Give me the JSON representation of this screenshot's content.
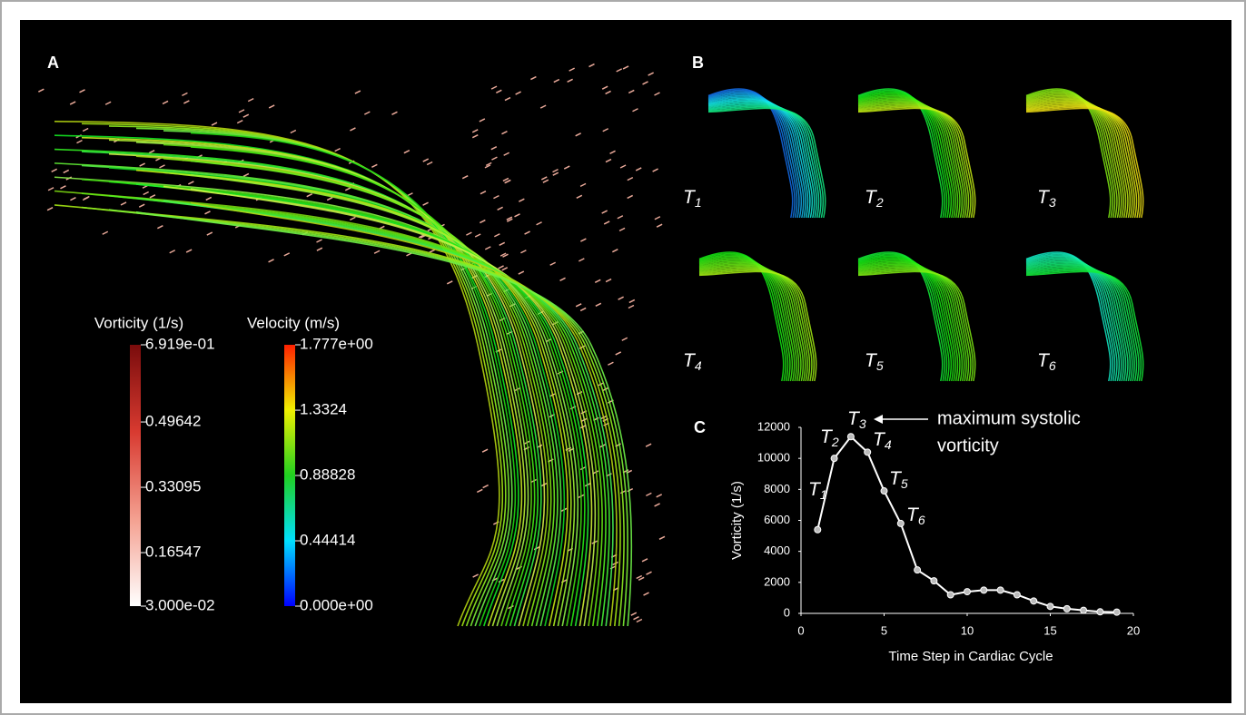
{
  "panels": {
    "a": "A",
    "b": "B",
    "c": "C"
  },
  "colorbars": [
    {
      "title": "Vorticity (1/s)",
      "lim": [
        0.03,
        0.6919
      ],
      "ticks": [
        {
          "value": 0.6919,
          "label": "6.919e-01"
        },
        0.49642,
        0.33095,
        0.16547,
        {
          "value": 0.03,
          "label": "3.000e-02"
        }
      ],
      "colors": [
        "#ffffff",
        "#f4a090",
        "#d83a30",
        "#7a0c0c"
      ]
    },
    {
      "title": "Velocity (m/s)",
      "lim": [
        0,
        1.777
      ],
      "ticks": [
        {
          "value": 1.777,
          "label": "1.777e+00"
        },
        1.3324,
        0.88828,
        0.44414,
        {
          "value": 0,
          "label": "0.000e+00"
        }
      ],
      "colors": [
        "#0000ff",
        "#00e0ff",
        "#20d020",
        "#f0f000",
        "#ff2000"
      ]
    }
  ],
  "thumbnails": [
    {
      "label": "T",
      "sub": "1"
    },
    {
      "label": "T",
      "sub": "2"
    },
    {
      "label": "T",
      "sub": "3"
    },
    {
      "label": "T",
      "sub": "4"
    },
    {
      "label": "T",
      "sub": "5"
    },
    {
      "label": "T",
      "sub": "6"
    }
  ],
  "chart_data": {
    "type": "line",
    "x": [
      1,
      2,
      3,
      4,
      5,
      6,
      7,
      8,
      9,
      10,
      11,
      12,
      13,
      14,
      15,
      16,
      17,
      18,
      19
    ],
    "series": [
      {
        "color": "#ffffff",
        "values": [
          5400,
          10000,
          11400,
          10400,
          7900,
          5800,
          2800,
          2100,
          1200,
          1400,
          1500,
          1500,
          1200,
          800,
          450,
          300,
          200,
          100,
          80
        ]
      }
    ],
    "xlim": [
      0,
      20
    ],
    "ylim": [
      0,
      12000
    ],
    "xticks": [
      0,
      5,
      10,
      15,
      20
    ],
    "yticks": [
      0,
      2000,
      4000,
      6000,
      8000,
      10000,
      12000
    ],
    "xlabel": "Time Step in Cardiac Cycle",
    "ylabel": "Vorticity (1/s)",
    "annotations": [
      {
        "label": "T",
        "sub": "1"
      },
      {
        "label": "T",
        "sub": "2"
      },
      {
        "label": "T",
        "sub": "3"
      },
      {
        "label": "T",
        "sub": "4"
      },
      {
        "label": "T",
        "sub": "5"
      },
      {
        "label": "T",
        "sub": "6"
      }
    ],
    "callout": [
      "maximum systolic",
      "vorticity"
    ]
  }
}
